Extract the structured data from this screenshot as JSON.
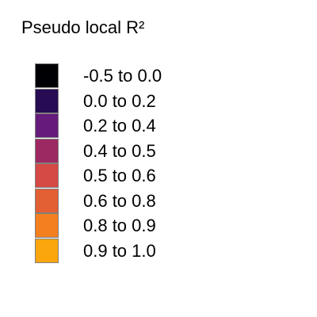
{
  "legend": {
    "title": "Pseudo local R²",
    "items": [
      {
        "label": "-0.5 to 0.0",
        "color": "#000004"
      },
      {
        "label": "0.0 to 0.2",
        "color": "#270B53"
      },
      {
        "label": "0.2 to 0.4",
        "color": "#661A7B"
      },
      {
        "label": "0.4 to 0.5",
        "color": "#9D2962"
      },
      {
        "label": "0.5 to 0.6",
        "color": "#D54A45"
      },
      {
        "label": "0.6 to 0.8",
        "color": "#E35F34"
      },
      {
        "label": "0.8 to 0.9",
        "color": "#F47F1F"
      },
      {
        "label": "0.9 to 1.0",
        "color": "#FCA60D"
      }
    ]
  }
}
